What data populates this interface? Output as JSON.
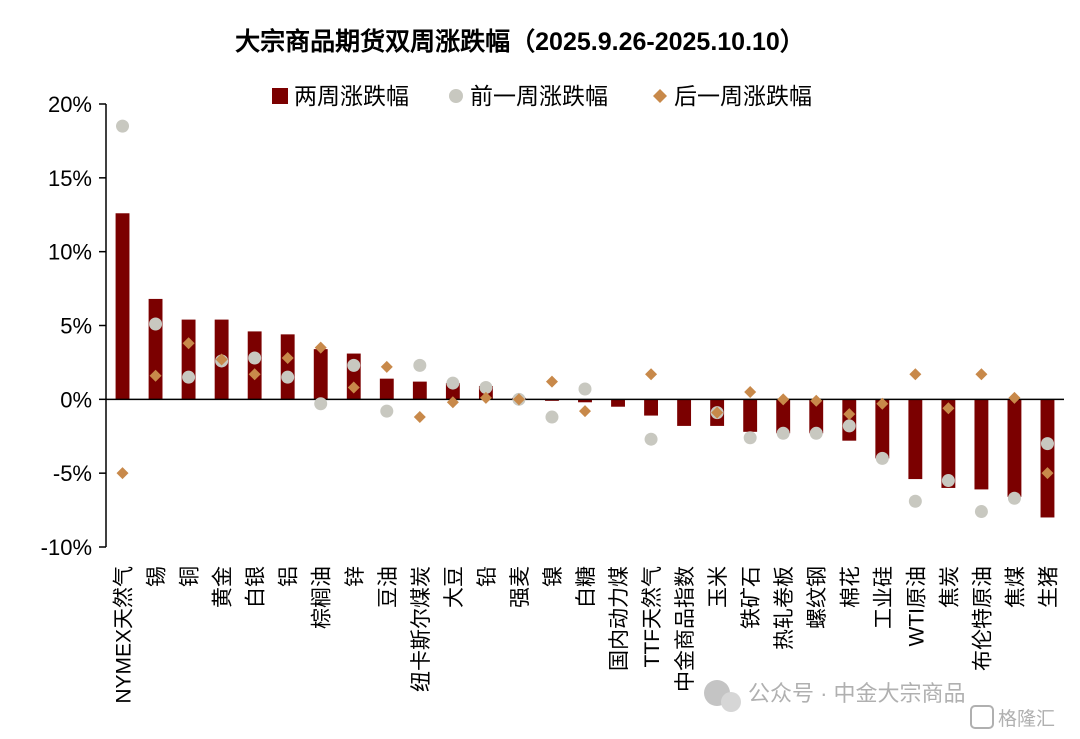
{
  "chart_data": {
    "type": "bar",
    "title": "大宗商品期货双周涨跌幅（2025.9.26-2025.10.10）",
    "ylim": [
      -10,
      20
    ],
    "yticks": [
      20,
      15,
      10,
      5,
      0,
      -5,
      -10
    ],
    "ytick_labels": [
      "20%",
      "15%",
      "10%",
      "5%",
      "0%",
      "-5%",
      "-10%"
    ],
    "legend_position": "top-center",
    "categories": [
      "NYMEX天然气",
      "锡",
      "铜",
      "黄金",
      "白银",
      "铝",
      "棕榈油",
      "锌",
      "豆油",
      "纽卡斯尔煤炭",
      "大豆",
      "铅",
      "强麦",
      "镍",
      "白糖",
      "国内动力煤",
      "TTF天然气",
      "中金商品指数",
      "玉米",
      "铁矿石",
      "热轧卷板",
      "螺纹钢",
      "棉花",
      "工业硅",
      "WTI原油",
      "焦炭",
      "布伦特原油",
      "焦煤",
      "生猪"
    ],
    "series": [
      {
        "name": "两周涨跌幅",
        "mark": "bar",
        "color": "#7b0000",
        "values": [
          12.6,
          6.8,
          5.4,
          5.4,
          4.6,
          4.4,
          3.4,
          3.1,
          1.4,
          1.2,
          1.1,
          0.9,
          0.1,
          -0.1,
          -0.2,
          -0.5,
          -1.1,
          -1.8,
          -1.8,
          -2.2,
          -2.3,
          -2.3,
          -2.8,
          -4.0,
          -5.4,
          -6.0,
          -6.1,
          -6.6,
          -8.0
        ]
      },
      {
        "name": "前一周涨跌幅",
        "mark": "circle",
        "color": "#c8c8c0",
        "values": [
          18.5,
          5.1,
          1.5,
          2.6,
          2.8,
          1.5,
          -0.3,
          2.3,
          -0.8,
          2.3,
          1.1,
          0.8,
          0.0,
          -1.2,
          0.7,
          null,
          -2.7,
          null,
          -0.9,
          -2.6,
          -2.3,
          -2.3,
          -1.8,
          -4.0,
          -6.9,
          -5.5,
          -7.6,
          -6.7,
          -3.0
        ]
      },
      {
        "name": "后一周涨跌幅",
        "mark": "diamond",
        "color": "#c8894a",
        "values": [
          -5.0,
          1.6,
          3.8,
          2.7,
          1.7,
          2.8,
          3.5,
          0.8,
          2.2,
          -1.2,
          -0.2,
          0.1,
          0.0,
          1.2,
          -0.8,
          null,
          1.7,
          null,
          -0.9,
          0.5,
          0.0,
          -0.1,
          -1.0,
          -0.3,
          1.7,
          -0.6,
          1.7,
          0.1,
          -5.0
        ]
      }
    ]
  },
  "watermark": {
    "text": "公众号 · 中金大宗商品",
    "logo_text": "格隆汇"
  }
}
